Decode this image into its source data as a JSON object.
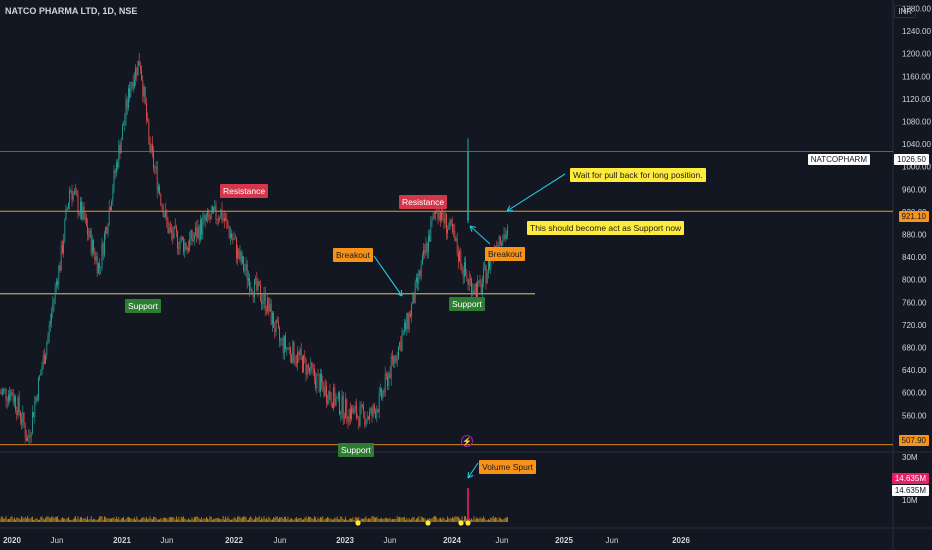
{
  "header": {
    "title": "NATCO PHARMA LTD, 1D, NSE",
    "currency": "INR"
  },
  "symbol_label": "NATCOPHARM",
  "colors": {
    "bg": "#131722",
    "up": "#26a69a",
    "down": "#ef5350",
    "orange": "#f7931a",
    "green": "#2e7d32",
    "red": "#d2374b",
    "yellow": "#ffeb3b",
    "cyan": "#26c6da",
    "volume": "#f2b01e"
  },
  "annotations": {
    "support1": "Support",
    "support2": "Support",
    "support3": "Support",
    "resistance1": "Resistance",
    "resistance2": "Resistance",
    "breakout1": "Breakout",
    "breakout2": "Breakout",
    "wait": "Wait for pull back for long position.",
    "should": "This should become act as Support now",
    "volume": "Volume Spurt"
  },
  "tags": {
    "last": "1026.50",
    "level": "921.10",
    "low": "507.90",
    "vol_top": "14.635M",
    "vol_last": "14.635M"
  },
  "chart_data": {
    "type": "candlestick",
    "price_axis": {
      "ticks": [
        1280,
        1240,
        1200,
        1160,
        1120,
        1080,
        1040,
        1000,
        960,
        920,
        880,
        840,
        800,
        760,
        720,
        680,
        640,
        600,
        560,
        520
      ],
      "range": [
        495,
        1295
      ]
    },
    "volume_axis": {
      "ticks": [
        "30M",
        "10M"
      ]
    },
    "x_ticks": [
      "2020",
      "Jun",
      "2021",
      "Jun",
      "2022",
      "Jun",
      "2023",
      "Jun",
      "2024",
      "Jun",
      "2025",
      "Jun",
      "2026"
    ],
    "horizontal_levels": [
      {
        "value": 1026.5,
        "label": "last price"
      },
      {
        "value": 921.1,
        "label": "resistance / support"
      },
      {
        "value": 775,
        "label": "support"
      },
      {
        "value": 507.9,
        "label": "support"
      }
    ],
    "price_path": [
      [
        0,
        600
      ],
      [
        0.2,
        560
      ],
      [
        0.35,
        515
      ],
      [
        0.55,
        600
      ],
      [
        0.8,
        700
      ],
      [
        1.05,
        830
      ],
      [
        1.2,
        965
      ],
      [
        1.4,
        910
      ],
      [
        1.65,
        820
      ],
      [
        1.85,
        960
      ],
      [
        2.0,
        1060
      ],
      [
        2.2,
        1150
      ],
      [
        2.4,
        1190
      ],
      [
        2.6,
        1040
      ],
      [
        2.8,
        970
      ],
      [
        3.05,
        880
      ],
      [
        3.3,
        860
      ],
      [
        3.55,
        900
      ],
      [
        3.8,
        920
      ],
      [
        4.1,
        840
      ],
      [
        4.4,
        790
      ],
      [
        4.7,
        760
      ],
      [
        5.0,
        690
      ],
      [
        5.3,
        660
      ],
      [
        5.65,
        610
      ],
      [
        6.0,
        570
      ],
      [
        6.3,
        560
      ],
      [
        6.6,
        560
      ],
      [
        6.8,
        590
      ],
      [
        7.0,
        640
      ],
      [
        7.3,
        730
      ],
      [
        7.55,
        840
      ],
      [
        7.75,
        930
      ],
      [
        8.0,
        880
      ],
      [
        8.3,
        800
      ],
      [
        8.55,
        780
      ],
      [
        8.75,
        830
      ],
      [
        8.95,
        880
      ],
      [
        9.1,
        880
      ]
    ],
    "volume_spurt": {
      "value": "14.635M"
    },
    "annotations": [
      "Support",
      "Resistance",
      "Breakout",
      "Wait for pull back for long position.",
      "This should become act as Support now",
      "Volume Spurt"
    ]
  }
}
